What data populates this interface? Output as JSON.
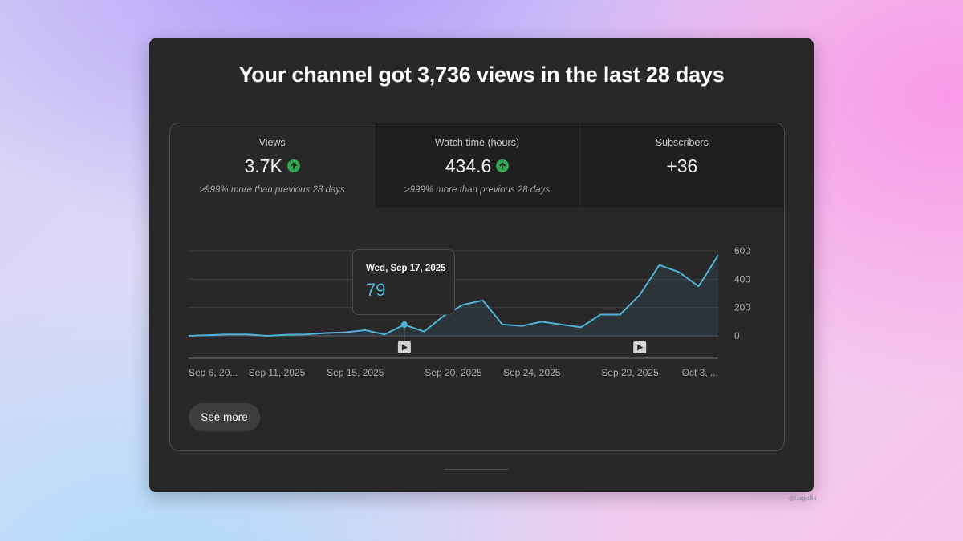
{
  "headline": "Your channel got 3,736 views in the last 28 days",
  "tabs": [
    {
      "label": "Views",
      "value": "3.7K",
      "trend": "up",
      "comparison": ">999% more than previous 28 days",
      "selected": true
    },
    {
      "label": "Watch time (hours)",
      "value": "434.6",
      "trend": "up",
      "comparison": ">999% more than previous 28 days",
      "selected": false
    },
    {
      "label": "Subscribers",
      "value": "+36",
      "trend": "",
      "comparison": "",
      "selected": false
    }
  ],
  "tooltip": {
    "date": "Wed, Sep 17, 2025",
    "value": "79"
  },
  "see_more_label": "See more",
  "watermark": "@Luigiolli4",
  "icons": {
    "trend_up": "arrow-up-circle-icon",
    "video_marker": "play-square-icon"
  },
  "colors": {
    "line": "#4fb3d9",
    "trend_up": "#34a853",
    "card_bg": "#282828"
  },
  "chart_data": {
    "type": "area",
    "title": "",
    "xlabel": "",
    "ylabel": "",
    "x_tick_labels": [
      "Sep 6, 20...",
      "Sep 11, 2025",
      "Sep 15, 2025",
      "Sep 20, 2025",
      "Sep 24, 2025",
      "Sep 29, 2025",
      "Oct 3, ..."
    ],
    "x_tick_days": [
      0,
      4.5,
      8.5,
      13.5,
      17.5,
      22.5,
      26.5
    ],
    "y_ticks": [
      0,
      200,
      400,
      600
    ],
    "ylim": [
      0,
      600
    ],
    "grid": true,
    "highlighted_day": 11,
    "video_marker_days": [
      11,
      23
    ],
    "series": [
      {
        "values": [
          0,
          5,
          10,
          10,
          0,
          8,
          10,
          20,
          25,
          40,
          10,
          79,
          30,
          140,
          220,
          250,
          80,
          70,
          100,
          80,
          60,
          150,
          150,
          290,
          500,
          450,
          350,
          570
        ]
      }
    ]
  }
}
